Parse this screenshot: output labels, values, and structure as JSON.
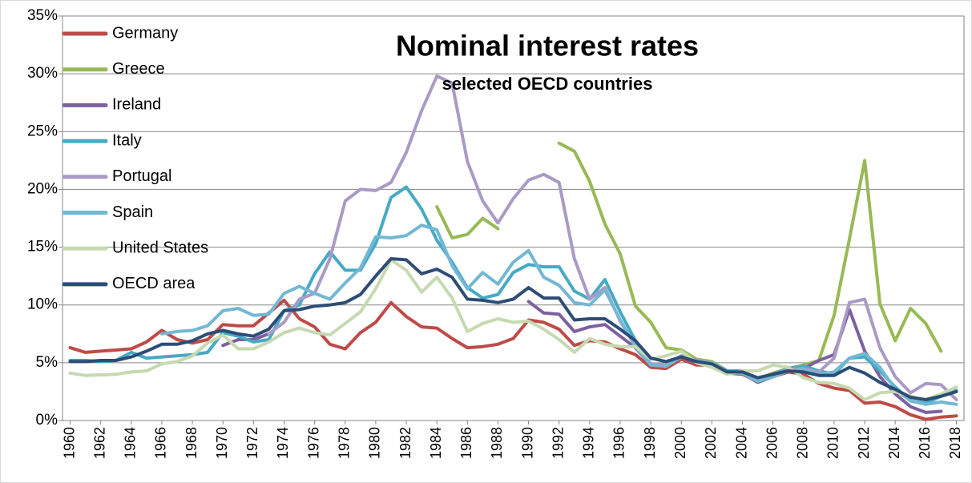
{
  "chart_data": {
    "type": "line",
    "title": "Nominal interest rates",
    "subtitle": "selected OECD countries",
    "x": [
      1960,
      1961,
      1962,
      1963,
      1964,
      1965,
      1966,
      1967,
      1968,
      1969,
      1970,
      1971,
      1972,
      1973,
      1974,
      1975,
      1976,
      1977,
      1978,
      1979,
      1980,
      1981,
      1982,
      1983,
      1984,
      1985,
      1986,
      1987,
      1988,
      1989,
      1990,
      1991,
      1992,
      1993,
      1994,
      1995,
      1996,
      1997,
      1998,
      1999,
      2000,
      2001,
      2002,
      2003,
      2004,
      2005,
      2006,
      2007,
      2008,
      2009,
      2010,
      2011,
      2012,
      2013,
      2014,
      2015,
      2016,
      2017,
      2018
    ],
    "xlim": [
      1959.5,
      2018.5
    ],
    "xticks": [
      1960,
      1962,
      1964,
      1966,
      1968,
      1970,
      1972,
      1974,
      1976,
      1978,
      1980,
      1982,
      1984,
      1986,
      1988,
      1990,
      1992,
      1994,
      1996,
      1998,
      2000,
      2002,
      2004,
      2006,
      2008,
      2010,
      2012,
      2014,
      2016,
      2018
    ],
    "ylim": [
      0,
      35
    ],
    "yticks": [
      {
        "value": 0,
        "label": "0%"
      },
      {
        "value": 5,
        "label": "5%"
      },
      {
        "value": 10,
        "label": "10%"
      },
      {
        "value": 15,
        "label": "15%"
      },
      {
        "value": 20,
        "label": "20%"
      },
      {
        "value": 25,
        "label": "25%"
      },
      {
        "value": 30,
        "label": "30%"
      },
      {
        "value": 35,
        "label": "35%"
      }
    ],
    "grid": true,
    "legend": "upper left",
    "series": [
      {
        "name": "Germany",
        "color": "#be4b48",
        "values": [
          6.3,
          5.9,
          6.0,
          6.1,
          6.2,
          6.8,
          7.8,
          7.0,
          6.7,
          7.0,
          8.3,
          8.2,
          8.2,
          9.3,
          10.4,
          8.8,
          8.1,
          6.6,
          6.2,
          7.6,
          8.5,
          10.2,
          9.0,
          8.1,
          8.0,
          7.1,
          6.3,
          6.4,
          6.6,
          7.1,
          8.7,
          8.5,
          7.9,
          6.5,
          6.9,
          6.8,
          6.2,
          5.7,
          4.6,
          4.5,
          5.3,
          4.8,
          4.8,
          4.1,
          4.0,
          3.4,
          3.8,
          4.2,
          4.0,
          3.2,
          2.8,
          2.6,
          1.5,
          1.6,
          1.2,
          0.5,
          0.1,
          0.3,
          0.4
        ]
      },
      {
        "name": "Greece",
        "color": "#98b954",
        "values": [
          null,
          null,
          null,
          null,
          null,
          null,
          null,
          null,
          null,
          null,
          null,
          null,
          null,
          null,
          null,
          null,
          null,
          null,
          null,
          null,
          null,
          null,
          null,
          null,
          18.5,
          15.8,
          16.1,
          17.5,
          16.6,
          null,
          null,
          null,
          24.0,
          23.3,
          20.7,
          17.0,
          14.4,
          9.9,
          8.5,
          6.3,
          6.1,
          5.3,
          5.1,
          4.3,
          4.3,
          3.6,
          4.1,
          4.5,
          4.8,
          5.2,
          9.1,
          15.7,
          22.5,
          10.1,
          6.9,
          9.7,
          8.4,
          6.0,
          null
        ]
      },
      {
        "name": "Ireland",
        "color": "#7d60a0",
        "values": [
          null,
          null,
          null,
          null,
          null,
          null,
          null,
          null,
          null,
          null,
          6.5,
          7.0,
          7.0,
          7.5,
          null,
          null,
          null,
          null,
          null,
          null,
          null,
          null,
          null,
          null,
          null,
          null,
          null,
          null,
          null,
          null,
          10.3,
          9.3,
          9.2,
          7.7,
          8.1,
          8.3,
          7.3,
          6.3,
          4.8,
          4.7,
          5.5,
          5.0,
          5.0,
          4.1,
          4.1,
          3.3,
          3.8,
          4.3,
          4.5,
          5.2,
          5.7,
          9.6,
          6.0,
          3.8,
          2.3,
          1.2,
          0.7,
          0.8,
          null
        ]
      },
      {
        "name": "Italy",
        "color": "#46aac5",
        "values": [
          5.2,
          5.2,
          5.1,
          5.2,
          5.9,
          5.4,
          5.5,
          5.6,
          5.7,
          5.9,
          7.6,
          7.3,
          6.8,
          7.0,
          9.5,
          10.0,
          12.7,
          14.6,
          13.0,
          13.0,
          15.3,
          19.3,
          20.2,
          18.3,
          15.6,
          13.7,
          11.5,
          10.6,
          10.9,
          12.8,
          13.5,
          13.3,
          13.3,
          11.2,
          10.5,
          12.2,
          9.4,
          6.9,
          4.9,
          4.7,
          5.6,
          5.2,
          5.0,
          4.3,
          4.3,
          3.6,
          4.0,
          4.5,
          4.7,
          4.3,
          4.0,
          5.4,
          5.5,
          4.3,
          2.9,
          1.7,
          1.5,
          2.1,
          2.6
        ]
      },
      {
        "name": "Portugal",
        "color": "#a99bc5",
        "values": [
          null,
          null,
          null,
          null,
          null,
          null,
          null,
          null,
          null,
          null,
          null,
          null,
          null,
          7.5,
          8.5,
          10.5,
          11.0,
          14.0,
          19.0,
          20.0,
          19.9,
          20.6,
          23.2,
          26.8,
          29.8,
          29.2,
          22.4,
          19.0,
          17.1,
          19.2,
          20.8,
          21.3,
          20.6,
          14.0,
          10.5,
          11.5,
          8.6,
          6.4,
          4.9,
          4.8,
          5.6,
          5.2,
          5.0,
          4.2,
          4.1,
          3.4,
          3.9,
          4.4,
          4.5,
          4.2,
          5.4,
          10.2,
          10.5,
          6.3,
          3.8,
          2.4,
          3.2,
          3.1,
          1.8
        ]
      },
      {
        "name": "Spain",
        "color": "#72b8d4",
        "values": [
          null,
          null,
          null,
          null,
          null,
          null,
          7.5,
          7.7,
          7.8,
          8.2,
          9.5,
          9.7,
          9.1,
          9.2,
          11.0,
          11.6,
          11.0,
          10.5,
          11.9,
          13.2,
          15.9,
          15.8,
          16.0,
          16.9,
          16.5,
          13.4,
          11.4,
          12.8,
          11.8,
          13.7,
          14.7,
          12.4,
          11.7,
          10.2,
          10.0,
          11.3,
          8.7,
          6.4,
          4.8,
          4.7,
          5.5,
          5.1,
          5.0,
          4.1,
          4.1,
          3.4,
          3.8,
          4.3,
          4.4,
          4.0,
          4.2,
          5.4,
          5.8,
          4.6,
          2.7,
          1.7,
          1.4,
          1.6,
          1.4
        ]
      },
      {
        "name": "United States",
        "color": "#c6d9b0",
        "values": [
          4.1,
          3.9,
          3.95,
          4.0,
          4.2,
          4.3,
          4.9,
          5.1,
          5.6,
          6.7,
          7.4,
          6.2,
          6.2,
          6.8,
          7.6,
          8.0,
          7.6,
          7.4,
          8.4,
          9.4,
          11.4,
          13.9,
          13.0,
          11.1,
          12.4,
          10.6,
          7.7,
          8.4,
          8.8,
          8.5,
          8.6,
          7.9,
          7.0,
          5.9,
          7.1,
          6.6,
          6.4,
          6.4,
          5.3,
          5.6,
          6.0,
          5.0,
          4.6,
          4.0,
          4.3,
          4.3,
          4.8,
          4.6,
          3.7,
          3.3,
          3.2,
          2.8,
          1.8,
          2.4,
          2.5,
          2.1,
          1.8,
          2.3,
          2.9
        ]
      },
      {
        "name": "OECD area",
        "color": "#2c4d75",
        "values": [
          5.1,
          5.1,
          5.2,
          5.2,
          5.5,
          6.0,
          6.6,
          6.6,
          6.9,
          7.5,
          7.8,
          7.5,
          7.3,
          7.9,
          9.5,
          9.6,
          9.9,
          10.0,
          10.2,
          10.9,
          12.5,
          14.0,
          13.9,
          12.7,
          13.1,
          12.4,
          10.5,
          10.4,
          10.2,
          10.5,
          11.5,
          10.6,
          10.6,
          8.7,
          8.8,
          8.8,
          7.9,
          6.9,
          5.4,
          5.1,
          5.5,
          5.1,
          4.9,
          4.2,
          4.2,
          3.7,
          4.0,
          4.3,
          4.2,
          3.9,
          3.9,
          4.6,
          4.1,
          3.3,
          2.7,
          2.0,
          1.8,
          2.1,
          2.5
        ]
      }
    ]
  }
}
